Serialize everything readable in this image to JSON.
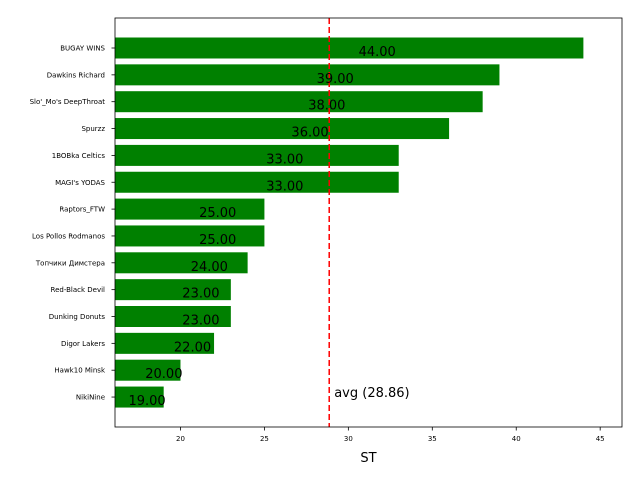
{
  "chart_data": {
    "type": "bar",
    "orientation": "horizontal",
    "categories": [
      "BUGAY WINS",
      "Dawkins Richard",
      "Slo'_Mo's DeepThroat",
      "Spurzz",
      "1BOBka Celtics",
      "MAGI's YODAS",
      "Raptors_FTW",
      "Los Pollos Rodmanos",
      "Топчики Димстера",
      "Red-Black Devil",
      "Dunking Donuts",
      "Digor Lakers",
      "Hawk10 Minsk",
      "NikiNine"
    ],
    "values": [
      44,
      39,
      38,
      36,
      33,
      33,
      25,
      25,
      24,
      23,
      23,
      22,
      20,
      19
    ],
    "value_labels": [
      "44.00",
      "39.00",
      "38.00",
      "36.00",
      "33.00",
      "33.00",
      "25.00",
      "25.00",
      "24.00",
      "23.00",
      "23.00",
      "22.00",
      "20.00",
      "19.00"
    ],
    "xlabel": "ST",
    "ylabel": "",
    "title": "",
    "xlim": [
      16.1,
      46.3
    ],
    "xticks": [
      20,
      25,
      30,
      35,
      40,
      45
    ],
    "grid": false,
    "bar_color": "#008000",
    "average": {
      "value": 28.86,
      "label": "avg (28.86)",
      "color": "#ff0000",
      "style": "dashed"
    }
  }
}
